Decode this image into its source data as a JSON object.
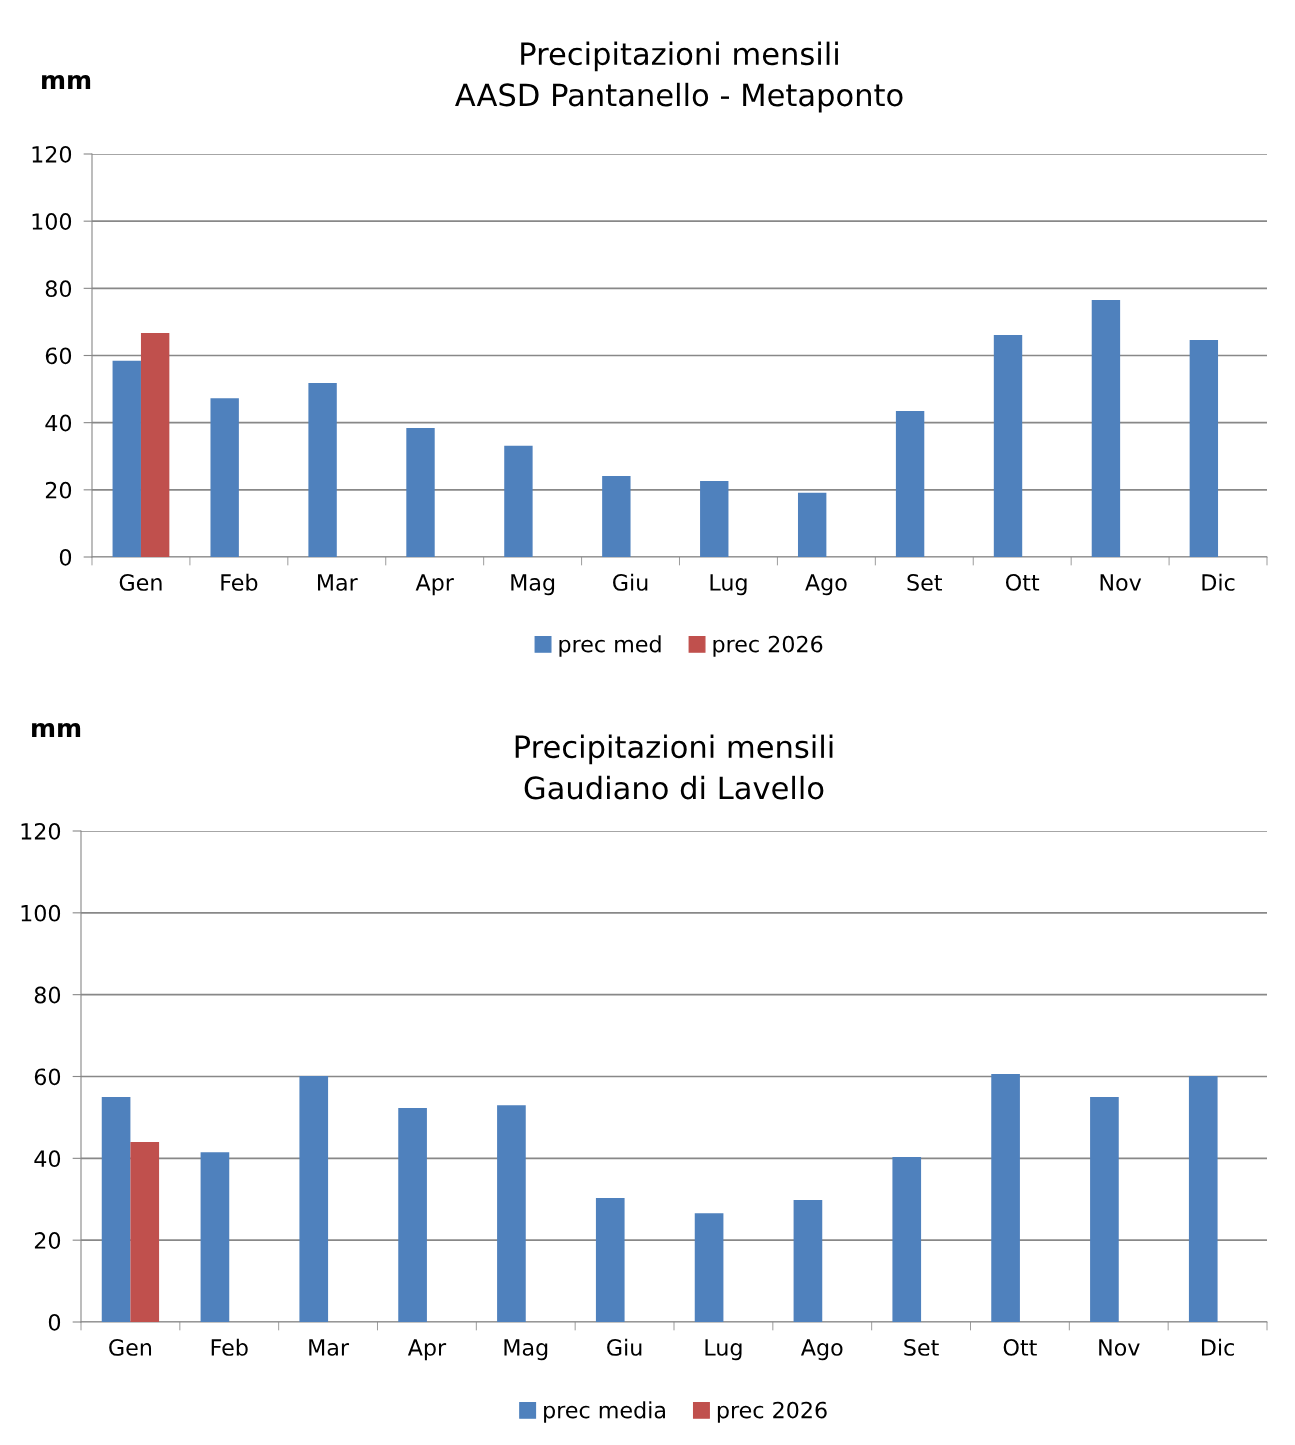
{
  "chart_data": [
    {
      "type": "bar",
      "title": "Precipitazioni mensili\nAASD Pantanello - Metaponto",
      "ylabel": "mm",
      "categories": [
        "Gen",
        "Feb",
        "Mar",
        "Apr",
        "Mag",
        "Giu",
        "Lug",
        "Ago",
        "Set",
        "Ott",
        "Nov",
        "Dic"
      ],
      "series": [
        {
          "name": "prec med",
          "color": "#4f81bd",
          "values": [
            58.4,
            47.3,
            51.8,
            38.4,
            33.1,
            24.1,
            22.6,
            19.1,
            43.5,
            66.1,
            76.5,
            64.6
          ]
        },
        {
          "name": "prec 2026",
          "color": "#c0504d",
          "values": [
            66.7,
            null,
            null,
            null,
            null,
            null,
            null,
            null,
            null,
            null,
            null,
            null
          ]
        }
      ],
      "ylim": [
        0,
        120
      ],
      "yticks": [
        0,
        20,
        40,
        60,
        80,
        100,
        120
      ],
      "grid": "y",
      "legend": "bottom"
    },
    {
      "type": "bar",
      "title": "Precipitazioni mensili\nGaudiano di Lavello",
      "ylabel": "mm",
      "categories": [
        "Gen",
        "Feb",
        "Mar",
        "Apr",
        "Mag",
        "Giu",
        "Lug",
        "Ago",
        "Set",
        "Ott",
        "Nov",
        "Dic"
      ],
      "series": [
        {
          "name": "prec media",
          "color": "#4f81bd",
          "values": [
            55.0,
            41.5,
            60.1,
            52.3,
            53.0,
            30.3,
            26.6,
            29.8,
            40.3,
            60.6,
            55.0,
            60.1
          ]
        },
        {
          "name": "prec 2026",
          "color": "#c0504d",
          "values": [
            44.0,
            null,
            null,
            null,
            null,
            null,
            null,
            null,
            null,
            null,
            null,
            null
          ]
        }
      ],
      "ylim": [
        0,
        120
      ],
      "yticks": [
        0,
        20,
        40,
        60,
        80,
        100,
        120
      ],
      "grid": "y",
      "legend": "bottom"
    }
  ]
}
